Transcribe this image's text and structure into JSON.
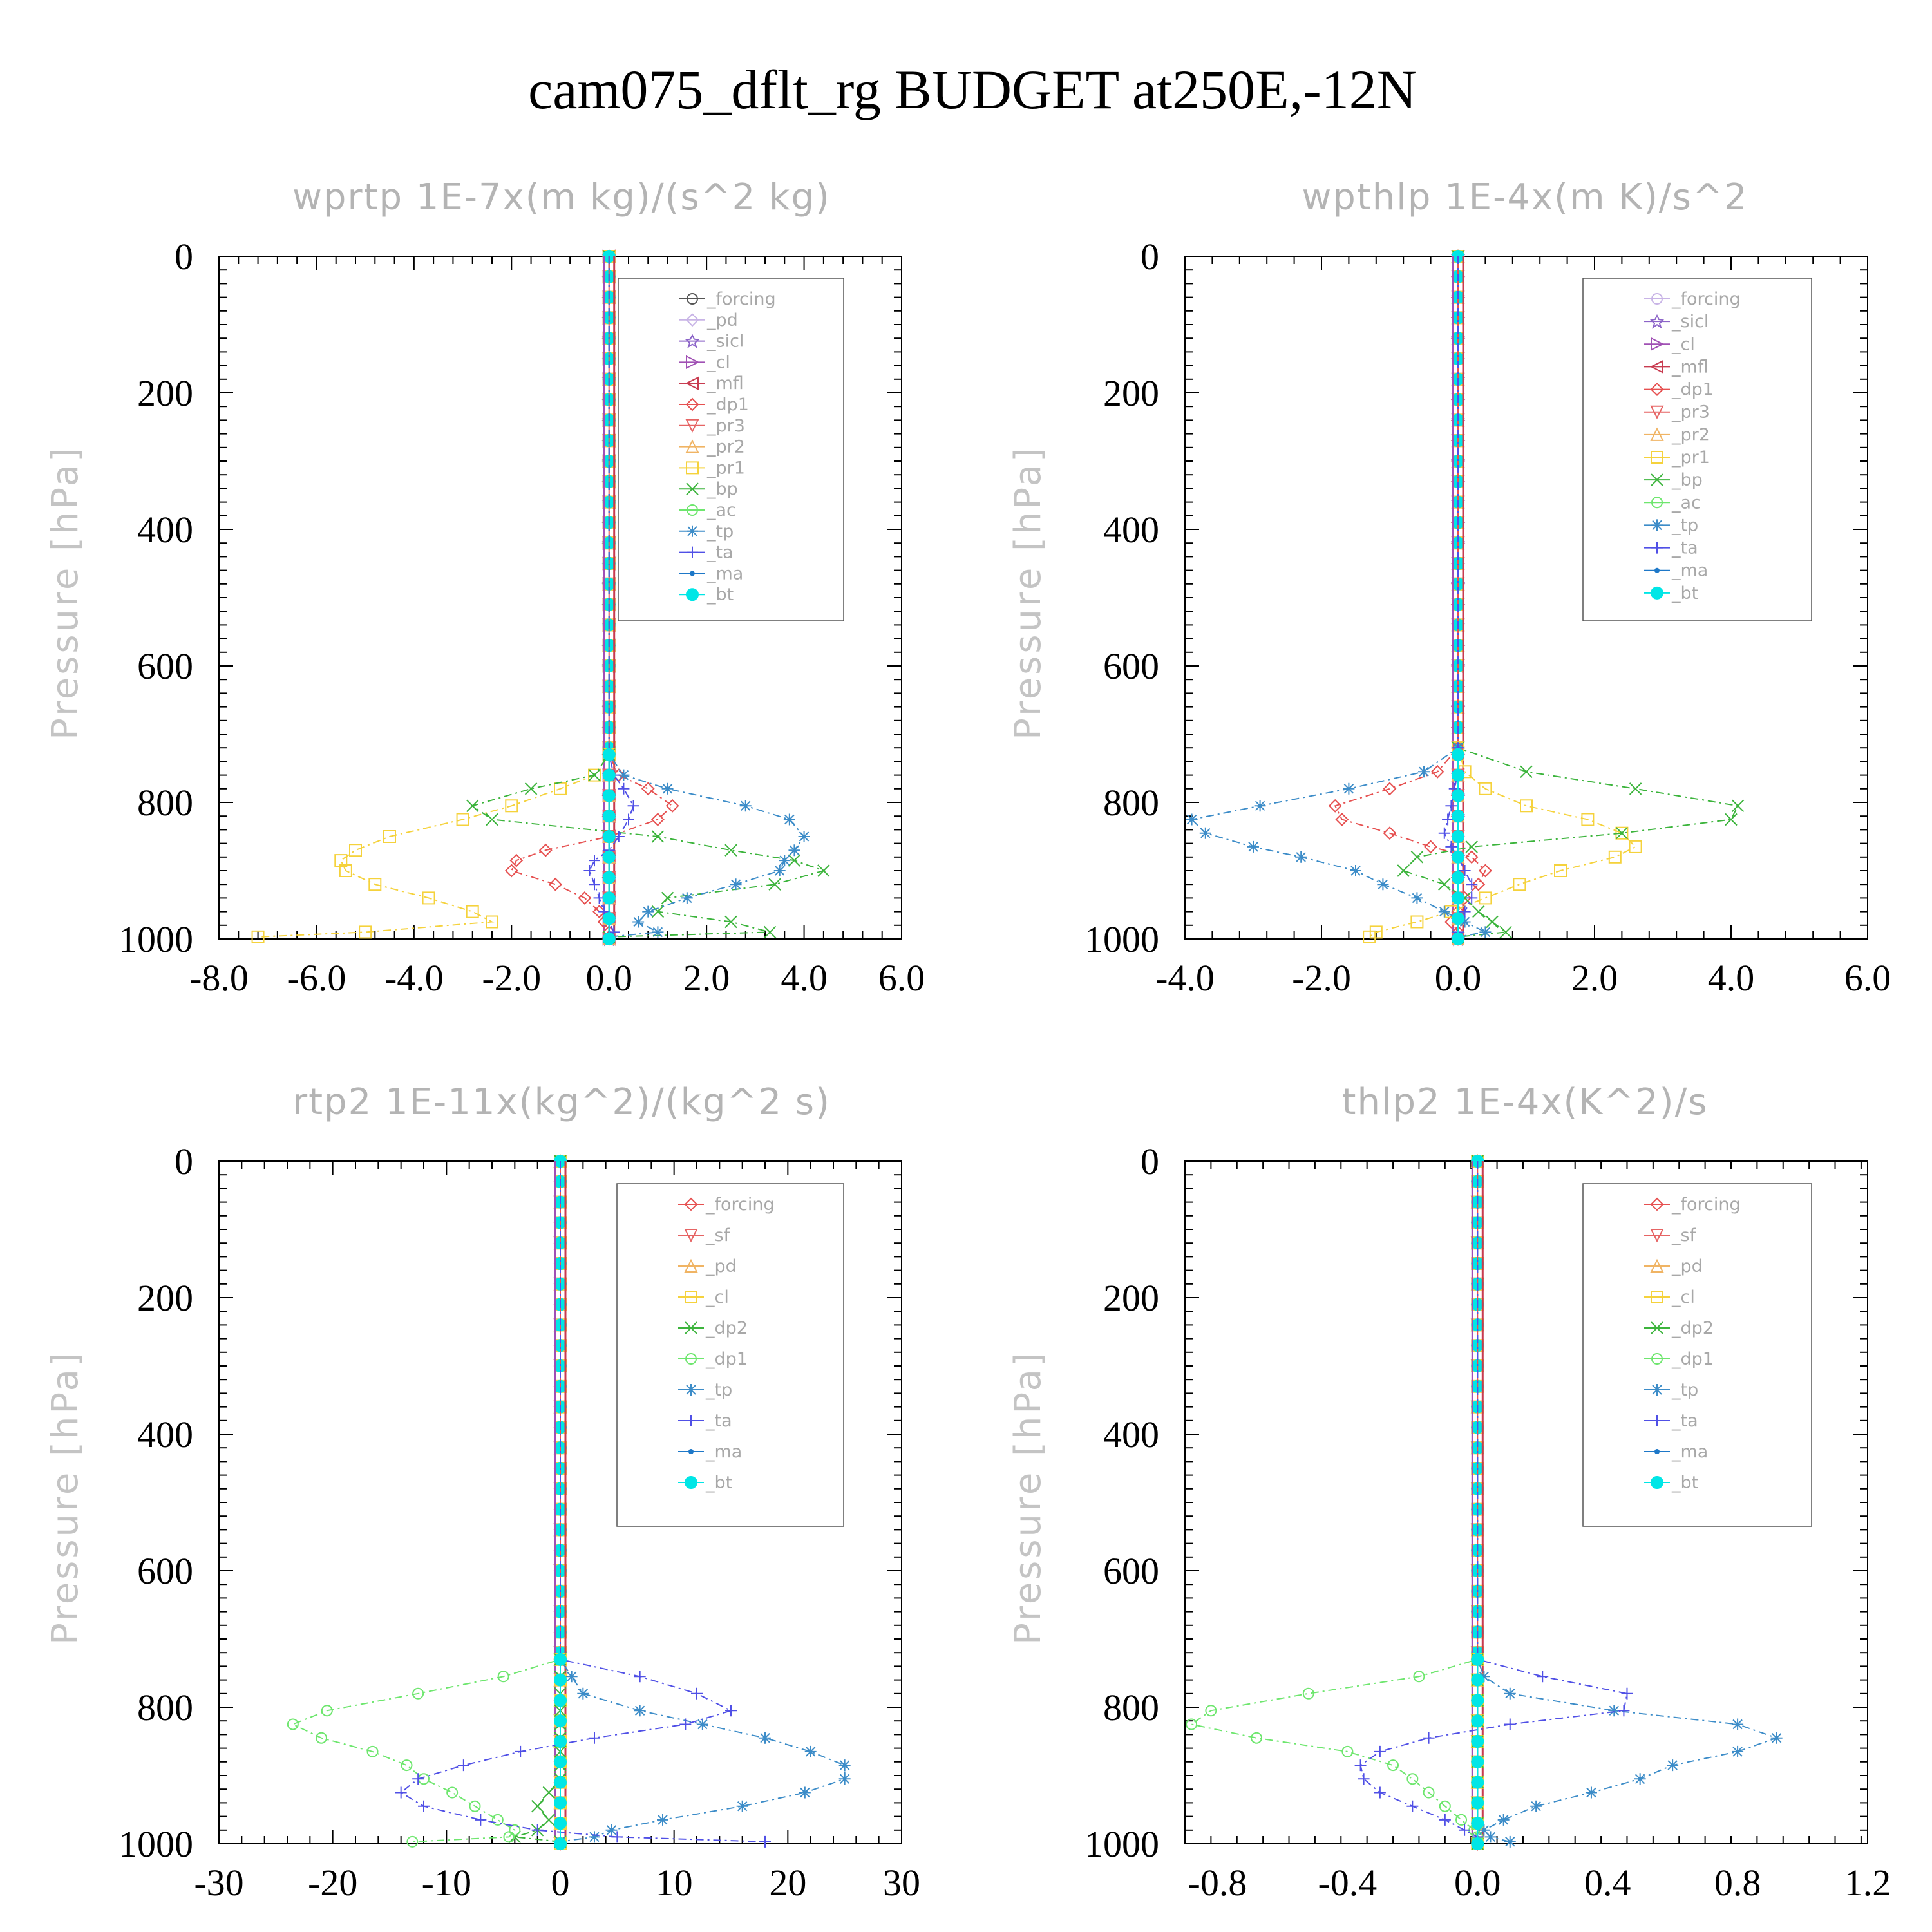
{
  "title": "cam075_dflt_rg  BUDGET at250E,-12N",
  "chart_data": [
    {
      "type": "line",
      "title": "wprtp  1E-7x(m kg)/(s^2 kg)",
      "ylabel": "Pressure [hPa]",
      "xlim": [
        -8,
        6
      ],
      "ylim": [
        1000,
        0
      ],
      "xticks": [
        -8,
        -6,
        -4,
        -2,
        0,
        2,
        4,
        6
      ],
      "xtick_labels": [
        "-8.0",
        "-6.0",
        "-4.0",
        "-2.0",
        "0.0",
        "2.0",
        "4.0",
        "6.0"
      ],
      "yticks": [
        0,
        200,
        400,
        600,
        800,
        1000
      ],
      "ytick_labels": [
        "0",
        "200",
        "400",
        "600",
        "800",
        "1000"
      ],
      "grid": false,
      "legend_position": "top-right",
      "pressure": [
        730,
        760,
        780,
        805,
        825,
        850,
        870,
        885,
        900,
        920,
        940,
        960,
        975,
        990,
        997
      ],
      "series": [
        {
          "name": "_forcing",
          "color": "#555555",
          "marker": "circle"
        },
        {
          "name": "_pd",
          "color": "#c8b4e6",
          "marker": "diamond"
        },
        {
          "name": "_sicl",
          "color": "#8c64c8",
          "marker": "star"
        },
        {
          "name": "_cl",
          "color": "#a050b4",
          "marker": "tri-right"
        },
        {
          "name": "_mfl",
          "color": "#c83c50",
          "marker": "tri-left"
        },
        {
          "name": "_dp1",
          "color": "#e65050",
          "marker": "diamond",
          "values": [
            0,
            0.2,
            0.8,
            1.3,
            1.0,
            0,
            -1.3,
            -1.9,
            -2.0,
            -1.1,
            -0.5,
            -0.2,
            -0.1,
            0,
            0
          ]
        },
        {
          "name": "_pr3",
          "color": "#e66464",
          "marker": "tri-down"
        },
        {
          "name": "_pr2",
          "color": "#f0b464",
          "marker": "tri-up"
        },
        {
          "name": "_pr1",
          "color": "#f5d23c",
          "marker": "square",
          "values": [
            0,
            -0.3,
            -1.0,
            -2.0,
            -3.0,
            -4.5,
            -5.2,
            -5.5,
            -5.4,
            -4.8,
            -3.7,
            -2.8,
            -2.4,
            -5.0,
            -7.2
          ]
        },
        {
          "name": "_bp",
          "color": "#3cb43c",
          "marker": "x",
          "values": [
            0,
            -0.3,
            -1.6,
            -2.8,
            -2.4,
            1.0,
            2.5,
            3.8,
            4.4,
            3.4,
            1.2,
            1.0,
            2.5,
            3.3,
            0
          ]
        },
        {
          "name": "_ac",
          "color": "#6ee66e",
          "marker": "circle"
        },
        {
          "name": "_tp",
          "color": "#3c8cc8",
          "marker": "asterisk",
          "values": [
            0,
            0.3,
            1.2,
            2.8,
            3.7,
            4.0,
            3.8,
            3.6,
            3.5,
            2.6,
            1.6,
            0.8,
            0.6,
            1.0,
            0
          ]
        },
        {
          "name": "_ta",
          "color": "#5050e6",
          "marker": "plus",
          "values": [
            0,
            0.1,
            0.3,
            0.5,
            0.4,
            0.2,
            0,
            -0.3,
            -0.4,
            -0.3,
            -0.2,
            -0.1,
            0,
            0.1,
            0
          ]
        },
        {
          "name": "_ma",
          "color": "#1e78c8",
          "marker": "dot"
        },
        {
          "name": "_bt",
          "color": "#00e6e6",
          "marker": "filled-circle"
        }
      ]
    },
    {
      "type": "line",
      "title": "wpthlp  1E-4x(m K)/s^2",
      "ylabel": "Pressure [hPa]",
      "xlim": [
        -4,
        6
      ],
      "ylim": [
        1000,
        0
      ],
      "xticks": [
        -4,
        -2,
        0,
        2,
        4,
        6
      ],
      "xtick_labels": [
        "-4.0",
        "-2.0",
        "0.0",
        "2.0",
        "4.0",
        "6.0"
      ],
      "yticks": [
        0,
        200,
        400,
        600,
        800,
        1000
      ],
      "ytick_labels": [
        "0",
        "200",
        "400",
        "600",
        "800",
        "1000"
      ],
      "grid": false,
      "legend_position": "top-right",
      "pressure": [
        720,
        755,
        780,
        805,
        825,
        845,
        865,
        880,
        900,
        920,
        940,
        960,
        975,
        990,
        997
      ],
      "series": [
        {
          "name": "_forcing",
          "color": "#c8b4e6",
          "marker": "circle"
        },
        {
          "name": "_sicl",
          "color": "#8c64c8",
          "marker": "star"
        },
        {
          "name": "_cl",
          "color": "#a050b4",
          "marker": "tri-right"
        },
        {
          "name": "_mfl",
          "color": "#c83c50",
          "marker": "tri-left"
        },
        {
          "name": "_dp1",
          "color": "#e65050",
          "marker": "diamond",
          "values": [
            0,
            -0.3,
            -1.0,
            -1.8,
            -1.7,
            -1.0,
            -0.4,
            0.2,
            0.4,
            0.3,
            0.1,
            0,
            -0.1,
            0,
            0
          ]
        },
        {
          "name": "_pr3",
          "color": "#e66464",
          "marker": "tri-down"
        },
        {
          "name": "_pr2",
          "color": "#f0b464",
          "marker": "tri-up"
        },
        {
          "name": "_pr1",
          "color": "#f5d23c",
          "marker": "square",
          "values": [
            0,
            0.1,
            0.4,
            1.0,
            1.9,
            2.4,
            2.6,
            2.3,
            1.5,
            0.9,
            0.4,
            -0.1,
            -0.6,
            -1.2,
            -1.3
          ]
        },
        {
          "name": "_bp",
          "color": "#3cb43c",
          "marker": "x",
          "values": [
            0,
            1.0,
            2.6,
            4.1,
            4.0,
            2.4,
            0.2,
            -0.6,
            -0.8,
            -0.2,
            0.1,
            0.3,
            0.5,
            0.7,
            0
          ]
        },
        {
          "name": "_ac",
          "color": "#6ee66e",
          "marker": "circle"
        },
        {
          "name": "_tp",
          "color": "#3c8cc8",
          "marker": "asterisk",
          "values": [
            0,
            -0.5,
            -1.6,
            -2.9,
            -3.9,
            -3.7,
            -3.0,
            -2.3,
            -1.5,
            -1.1,
            -0.6,
            -0.2,
            0.1,
            0.4,
            0
          ]
        },
        {
          "name": "_ta",
          "color": "#5050e6",
          "marker": "plus",
          "values": [
            0,
            0,
            -0.05,
            -0.1,
            -0.15,
            -0.2,
            -0.1,
            0,
            0.1,
            0.2,
            0.2,
            0.1,
            0,
            0,
            0
          ]
        },
        {
          "name": "_ma",
          "color": "#1e78c8",
          "marker": "dot"
        },
        {
          "name": "_bt",
          "color": "#00e6e6",
          "marker": "filled-circle"
        }
      ]
    },
    {
      "type": "line",
      "title": "rtp2  1E-11x(kg^2)/(kg^2 s)",
      "ylabel": "Pressure [hPa]",
      "xlim": [
        -30,
        30
      ],
      "ylim": [
        1000,
        0
      ],
      "xticks": [
        -30,
        -20,
        -10,
        0,
        10,
        20,
        30
      ],
      "xtick_labels": [
        "-30",
        "-20",
        "-10",
        "0",
        "10",
        "20",
        "30"
      ],
      "yticks": [
        0,
        200,
        400,
        600,
        800,
        1000
      ],
      "ytick_labels": [
        "0",
        "200",
        "400",
        "600",
        "800",
        "1000"
      ],
      "grid": false,
      "legend_position": "top-right",
      "pressure": [
        730,
        755,
        780,
        805,
        825,
        845,
        865,
        885,
        905,
        925,
        945,
        965,
        980,
        990,
        997
      ],
      "series": [
        {
          "name": "_forcing",
          "color": "#e65050",
          "marker": "diamond"
        },
        {
          "name": "_sf",
          "color": "#e66464",
          "marker": "tri-down"
        },
        {
          "name": "_pd",
          "color": "#f0b464",
          "marker": "tri-up"
        },
        {
          "name": "_cl",
          "color": "#f5d23c",
          "marker": "square"
        },
        {
          "name": "_dp2",
          "color": "#3cb43c",
          "marker": "x",
          "values": [
            0,
            0,
            0,
            0,
            0,
            0,
            0,
            0,
            0,
            -1.0,
            -2.0,
            -1.0,
            -2.0,
            -4.0,
            0
          ]
        },
        {
          "name": "_dp1",
          "color": "#6ee66e",
          "marker": "circle",
          "values": [
            0,
            -5.0,
            -12.5,
            -20.5,
            -23.5,
            -21.0,
            -16.5,
            -13.5,
            -12.0,
            -9.5,
            -7.5,
            -5.5,
            -4.0,
            -4.5,
            -13.0
          ]
        },
        {
          "name": "_tp",
          "color": "#3c8cc8",
          "marker": "asterisk",
          "values": [
            0,
            1.0,
            2.0,
            7.0,
            12.5,
            18.0,
            22.0,
            25.0,
            25.0,
            21.5,
            16.0,
            9.0,
            4.5,
            3.0,
            0
          ]
        },
        {
          "name": "_ta",
          "color": "#5050e6",
          "marker": "plus",
          "values": [
            0,
            7.0,
            12.0,
            15.0,
            11.0,
            3.0,
            -3.5,
            -8.5,
            -12.5,
            -14.0,
            -12.0,
            -7.0,
            -2.0,
            5.0,
            18.0
          ]
        },
        {
          "name": "_ma",
          "color": "#1e78c8",
          "marker": "dot"
        },
        {
          "name": "_bt",
          "color": "#00e6e6",
          "marker": "filled-circle"
        }
      ]
    },
    {
      "type": "line",
      "title": "thlp2  1E-4x(K^2)/s",
      "ylabel": "Pressure [hPa]",
      "xlim": [
        -0.9,
        1.2
      ],
      "ylim": [
        1000,
        0
      ],
      "xticks": [
        -0.8,
        -0.4,
        0,
        0.4,
        0.8,
        1.2
      ],
      "xtick_labels": [
        "-0.8",
        "-0.4",
        "0.0",
        "0.4",
        "0.8",
        "1.2"
      ],
      "yticks": [
        0,
        200,
        400,
        600,
        800,
        1000
      ],
      "ytick_labels": [
        "0",
        "200",
        "400",
        "600",
        "800",
        "1000"
      ],
      "grid": false,
      "legend_position": "top-right",
      "pressure": [
        730,
        755,
        780,
        805,
        825,
        845,
        865,
        885,
        905,
        925,
        945,
        965,
        980,
        990,
        997
      ],
      "series": [
        {
          "name": "_forcing",
          "color": "#e65050",
          "marker": "diamond"
        },
        {
          "name": "_sf",
          "color": "#e66464",
          "marker": "tri-down"
        },
        {
          "name": "_pd",
          "color": "#f0b464",
          "marker": "tri-up"
        },
        {
          "name": "_cl",
          "color": "#f5d23c",
          "marker": "square"
        },
        {
          "name": "_dp2",
          "color": "#3cb43c",
          "marker": "x"
        },
        {
          "name": "_dp1",
          "color": "#6ee66e",
          "marker": "circle",
          "values": [
            0,
            -0.18,
            -0.52,
            -0.82,
            -0.88,
            -0.68,
            -0.4,
            -0.26,
            -0.2,
            -0.15,
            -0.1,
            -0.05,
            -0.01,
            0,
            0
          ]
        },
        {
          "name": "_tp",
          "color": "#3c8cc8",
          "marker": "asterisk",
          "values": [
            0,
            0.02,
            0.1,
            0.42,
            0.8,
            0.92,
            0.8,
            0.6,
            0.5,
            0.35,
            0.18,
            0.08,
            0.02,
            0.04,
            0.1
          ]
        },
        {
          "name": "_ta",
          "color": "#5050e6",
          "marker": "plus",
          "values": [
            0,
            0.2,
            0.46,
            0.45,
            0.1,
            -0.15,
            -0.3,
            -0.36,
            -0.35,
            -0.3,
            -0.2,
            -0.1,
            -0.04,
            0,
            0
          ]
        },
        {
          "name": "_ma",
          "color": "#1e78c8",
          "marker": "dot"
        },
        {
          "name": "_bt",
          "color": "#00e6e6",
          "marker": "filled-circle"
        }
      ]
    }
  ]
}
